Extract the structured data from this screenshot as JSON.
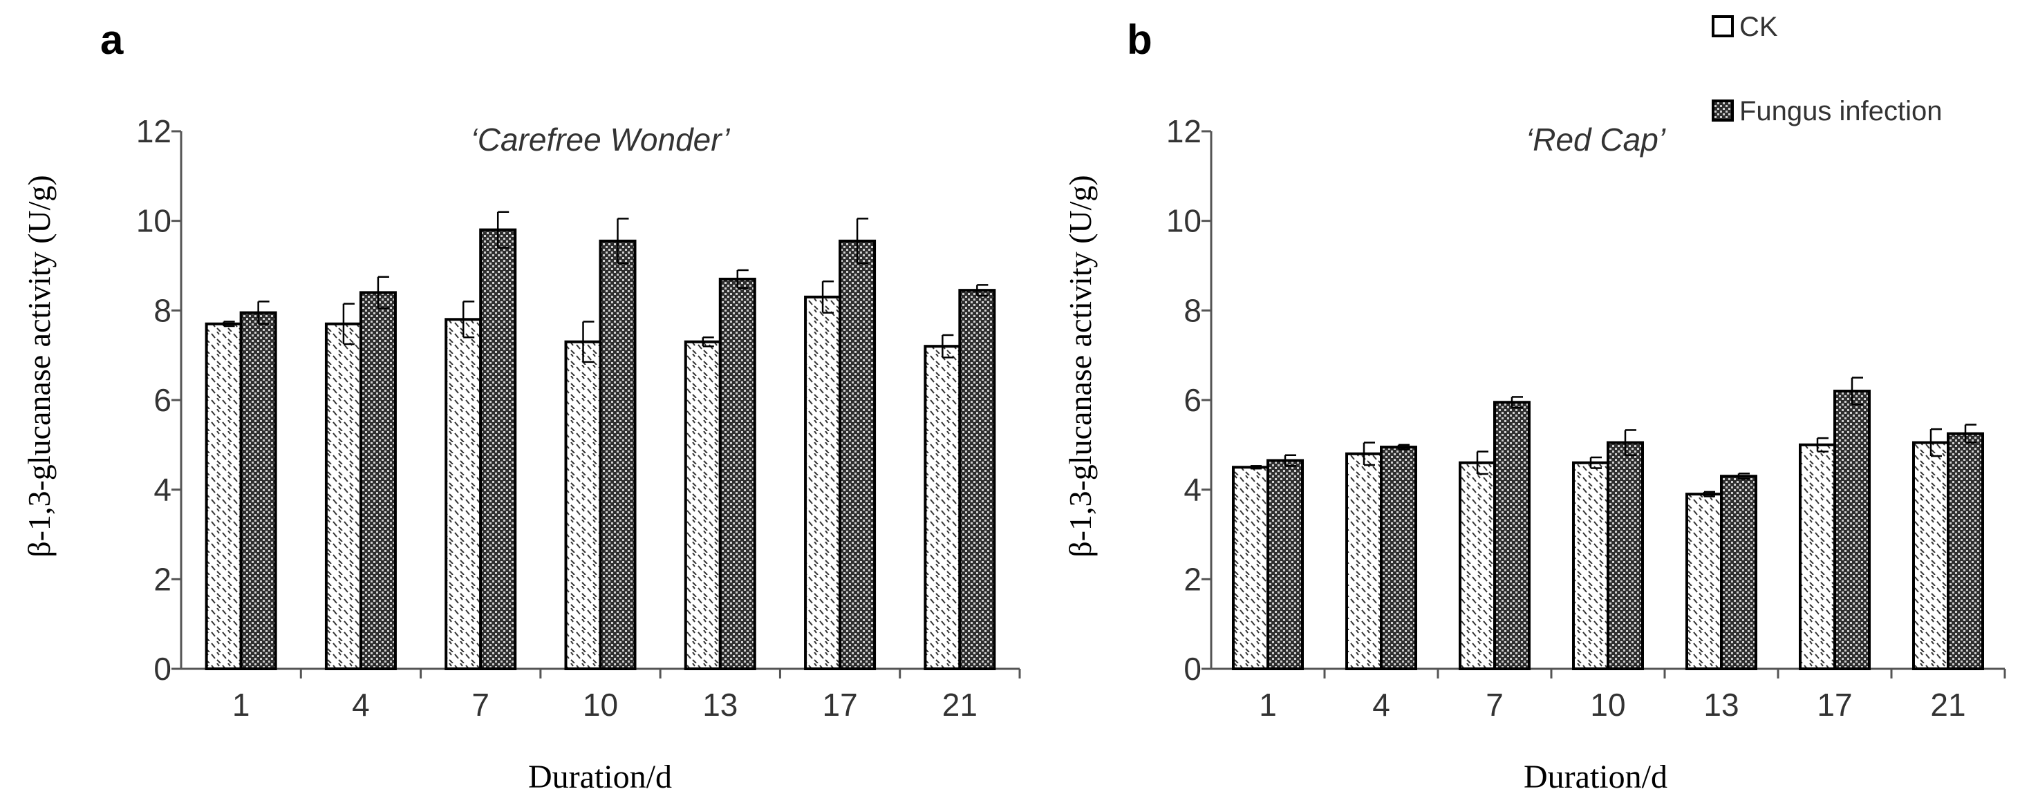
{
  "legend": {
    "position": "top-right",
    "items": [
      {
        "name": "CK",
        "pattern": "hatch-light"
      },
      {
        "name": "Fungus infection",
        "pattern": "checker-dark"
      }
    ]
  },
  "colors": {
    "axis": "#555555",
    "text": "#333333",
    "bar_outline": "#000000",
    "ck_fill": "#ffffff",
    "fungus_fill": "#3a3a3a"
  },
  "chart_data": [
    {
      "type": "bar",
      "panel_label": "a",
      "title": "‘Carefree Wonder’",
      "xlabel": "Duration/d",
      "ylabel": "β-1,3-glucanase activity (U/g)",
      "ylim": [
        0,
        12
      ],
      "yticks": [
        0,
        2,
        4,
        6,
        8,
        10,
        12
      ],
      "grid": false,
      "categories": [
        "1",
        "4",
        "7",
        "10",
        "13",
        "17",
        "21"
      ],
      "series": [
        {
          "name": "CK",
          "values": [
            7.7,
            7.7,
            7.8,
            7.3,
            7.3,
            8.3,
            7.2
          ],
          "errors": [
            0.05,
            0.45,
            0.4,
            0.45,
            0.1,
            0.35,
            0.25
          ]
        },
        {
          "name": "Fungus infection",
          "values": [
            7.95,
            8.4,
            9.8,
            9.55,
            8.7,
            9.55,
            8.45
          ],
          "errors": [
            0.25,
            0.35,
            0.4,
            0.5,
            0.2,
            0.5,
            0.12
          ]
        }
      ]
    },
    {
      "type": "bar",
      "panel_label": "b",
      "title": "‘Red Cap’",
      "xlabel": "Duration/d",
      "ylabel": "β-1,3-glucanase activity (U/g)",
      "ylim": [
        0,
        12
      ],
      "yticks": [
        0,
        2,
        4,
        6,
        8,
        10,
        12
      ],
      "grid": false,
      "categories": [
        "1",
        "4",
        "7",
        "10",
        "13",
        "17",
        "21"
      ],
      "series": [
        {
          "name": "CK",
          "values": [
            4.5,
            4.8,
            4.6,
            4.6,
            3.9,
            5.0,
            5.05
          ],
          "errors": [
            0.03,
            0.25,
            0.25,
            0.12,
            0.05,
            0.15,
            0.3
          ]
        },
        {
          "name": "Fungus infection",
          "values": [
            4.65,
            4.95,
            5.95,
            5.05,
            4.3,
            6.2,
            5.25
          ],
          "errors": [
            0.12,
            0.05,
            0.12,
            0.28,
            0.06,
            0.3,
            0.2
          ]
        }
      ]
    }
  ]
}
